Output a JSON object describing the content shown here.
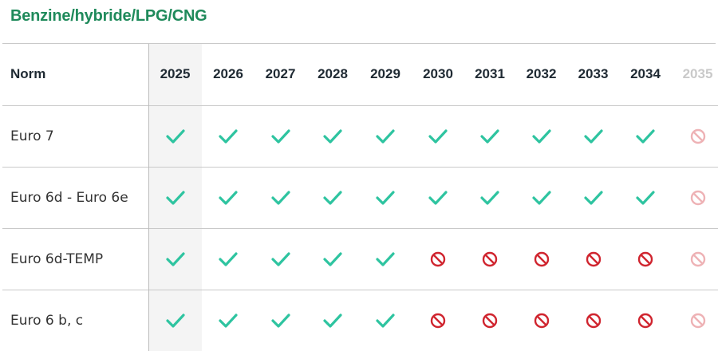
{
  "title": "Benzine/hybride/LPG/CNG",
  "table": {
    "norm_header": "Norm",
    "years": [
      "2025",
      "2026",
      "2027",
      "2028",
      "2029",
      "2030",
      "2031",
      "2032",
      "2033",
      "2034",
      "2035"
    ],
    "highlighted_year": "2025",
    "faded_year": "2035",
    "rows": [
      {
        "label": "Euro 7",
        "status": [
          "ok",
          "ok",
          "ok",
          "ok",
          "ok",
          "ok",
          "ok",
          "ok",
          "ok",
          "ok",
          "banned"
        ]
      },
      {
        "label": "Euro 6d - Euro 6e",
        "status": [
          "ok",
          "ok",
          "ok",
          "ok",
          "ok",
          "ok",
          "ok",
          "ok",
          "ok",
          "ok",
          "banned"
        ]
      },
      {
        "label": "Euro 6d-TEMP",
        "status": [
          "ok",
          "ok",
          "ok",
          "ok",
          "ok",
          "banned",
          "banned",
          "banned",
          "banned",
          "banned",
          "banned"
        ]
      },
      {
        "label": "Euro 6 b, c",
        "status": [
          "ok",
          "ok",
          "ok",
          "ok",
          "ok",
          "banned",
          "banned",
          "banned",
          "banned",
          "banned",
          "banned"
        ]
      }
    ]
  },
  "icons": {
    "ok": "checkmark-icon",
    "banned": "prohibited-icon"
  },
  "colors": {
    "title": "#1f8a5b",
    "check": "#2ec4a0",
    "banned": "#d0252f",
    "highlight_column": "#f4f4f4"
  }
}
